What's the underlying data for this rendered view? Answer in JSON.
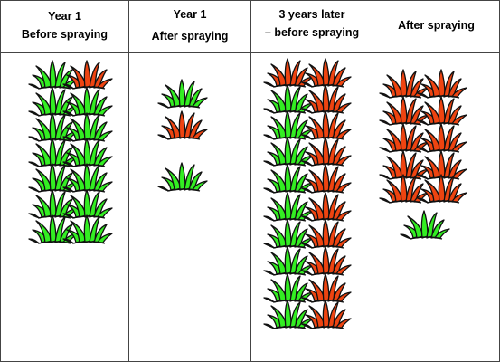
{
  "columns": [
    {
      "title_line1": "Year 1",
      "title_line2": "Before spraying"
    },
    {
      "title_line1": "Year 1",
      "title_line2": "After spraying"
    },
    {
      "title_line1": "3 years later",
      "title_line2": "– before spraying"
    },
    {
      "title_line1": "After spraying",
      "title_line2": ""
    }
  ],
  "legend_colors": {
    "susceptible": "#33ee22",
    "resistant": "#ee4411"
  },
  "plants": [
    {
      "column": 0,
      "kinds": [
        "G",
        "R",
        "G",
        "G",
        "G",
        "G",
        "G",
        "G",
        "G",
        "G",
        "G",
        "G",
        "G",
        "G"
      ]
    },
    {
      "column": 1,
      "kinds": [
        "G",
        "R",
        "G"
      ]
    },
    {
      "column": 2,
      "kinds": [
        "R",
        "R",
        "G",
        "R",
        "G",
        "R",
        "G",
        "R",
        "G",
        "R",
        "G",
        "R",
        "G",
        "R",
        "G",
        "R",
        "G",
        "R",
        "G",
        "R"
      ]
    },
    {
      "column": 3,
      "kinds": [
        "R",
        "R",
        "R",
        "R",
        "R",
        "R",
        "R",
        "R",
        "R",
        "R",
        "G"
      ]
    }
  ],
  "icon": "grass-tuft-icon"
}
